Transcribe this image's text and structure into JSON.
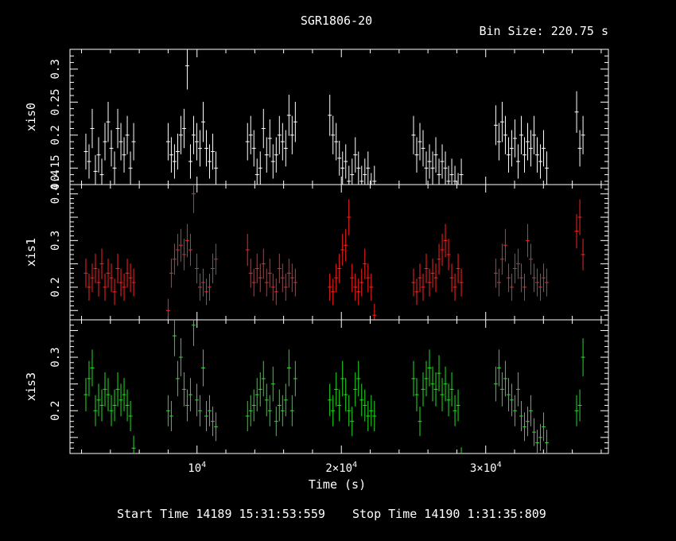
{
  "header": {
    "title": "SGR1806-20",
    "bin_size": "Bin Size: 220.75 s"
  },
  "footer": {
    "start_time": "Start Time 14189 15:31:53:559",
    "stop_time": "Stop Time 14190  1:31:35:809"
  },
  "colors": {
    "xis0": "#ffffff",
    "xis1": "#ff2020",
    "xis3": "#20e020",
    "frame": "#ffffff"
  },
  "chart_data": {
    "type": "scatter",
    "xlabel": "Time (s)",
    "xlim": [
      1200,
      38500
    ],
    "x_ticks": [
      {
        "value": 10000,
        "label": "10",
        "exp": "4"
      },
      {
        "value": 20000,
        "label": "2×10",
        "exp": "4"
      },
      {
        "value": 30000,
        "label": "3×10",
        "exp": "4"
      }
    ],
    "bin_size": 220.75,
    "segment_starts": [
      2300,
      8000,
      13500,
      19200,
      25000,
      30700,
      36300
    ],
    "panels": [
      {
        "name": "xis0",
        "ylabel": "xis0",
        "ylim": [
          0.125,
          0.33
        ],
        "y_ticks": [
          {
            "value": 0.15,
            "label": "0.15"
          },
          {
            "value": 0.2,
            "label": "0.2"
          },
          {
            "value": 0.25,
            "label": "0.25"
          },
          {
            "value": 0.3,
            "label": "0.3"
          }
        ],
        "bottom_label": "0.4",
        "color": "#ffffff",
        "segments": [
          [
            0.175,
            0.16,
            0.21,
            0.145,
            0.17,
            0.14,
            0.19,
            0.22,
            0.18,
            0.15,
            0.21,
            0.19,
            0.17,
            0.2,
            0.15,
            0.19
          ],
          [
            0.19,
            0.17,
            0.16,
            0.175,
            0.2,
            0.21,
            0.305,
            0.16,
            0.2,
            0.19,
            0.18,
            0.22,
            0.18,
            0.16,
            0.175,
            0.15
          ],
          [
            0.19,
            0.2,
            0.18,
            0.14,
            0.15,
            0.21,
            0.17,
            0.195,
            0.16,
            0.17,
            0.2,
            0.19,
            0.18,
            0.23,
            0.2,
            0.22
          ],
          [
            0.23,
            0.2,
            0.19,
            0.165,
            0.15,
            0.16,
            0.13,
            0.14,
            0.17,
            0.15,
            0.13,
            0.14,
            0.15,
            0.12,
            0.13
          ],
          [
            0.2,
            0.17,
            0.19,
            0.18,
            0.15,
            0.16,
            0.15,
            0.17,
            0.14,
            0.16,
            0.15,
            0.13,
            0.14,
            0.13,
            0.12,
            0.14
          ],
          [
            0.215,
            0.19,
            0.22,
            0.2,
            0.17,
            0.18,
            0.195,
            0.16,
            0.2,
            0.17,
            0.19,
            0.18,
            0.2,
            0.17,
            0.16,
            0.18,
            0.15
          ],
          [
            0.235,
            0.18,
            0.2
          ]
        ]
      },
      {
        "name": "xis1",
        "ylabel": "xis1",
        "ylim": [
          0.13,
          0.42
        ],
        "y_ticks": [
          {
            "value": 0.2,
            "label": "0.2"
          },
          {
            "value": 0.3,
            "label": "0.3"
          },
          {
            "value": 0.4,
            "label": "0.4"
          }
        ],
        "color": "#ff2020",
        "segments": [
          [
            0.23,
            0.2,
            0.22,
            0.24,
            0.21,
            0.25,
            0.2,
            0.23,
            0.22,
            0.19,
            0.24,
            0.21,
            0.2,
            0.23,
            0.22,
            0.21
          ],
          [
            0.15,
            0.23,
            0.26,
            0.28,
            0.29,
            0.27,
            0.3,
            0.28,
            0.4,
            0.24,
            0.2,
            0.21,
            0.19,
            0.2,
            0.24,
            0.26
          ],
          [
            0.28,
            0.23,
            0.21,
            0.24,
            0.22,
            0.25,
            0.21,
            0.23,
            0.2,
            0.19,
            0.24,
            0.22,
            0.2,
            0.23,
            0.22,
            0.21
          ],
          [
            0.2,
            0.19,
            0.22,
            0.24,
            0.28,
            0.29,
            0.35,
            0.22,
            0.2,
            0.19,
            0.21,
            0.25,
            0.22,
            0.2,
            0.14
          ],
          [
            0.21,
            0.19,
            0.22,
            0.2,
            0.24,
            0.21,
            0.23,
            0.22,
            0.26,
            0.28,
            0.3,
            0.27,
            0.22,
            0.2,
            0.24,
            0.21
          ],
          [
            0.23,
            0.21,
            0.26,
            0.29,
            0.22,
            0.2,
            0.24,
            0.25,
            0.22,
            0.2,
            0.3,
            0.26,
            0.22,
            0.21,
            0.2,
            0.22,
            0.21
          ],
          [
            0.32,
            0.35,
            0.27
          ]
        ]
      },
      {
        "name": "xis3",
        "ylabel": "xis3",
        "ylim": [
          0.12,
          0.37
        ],
        "y_ticks": [
          {
            "value": 0.2,
            "label": "0.2"
          },
          {
            "value": 0.3,
            "label": "0.3"
          }
        ],
        "color": "#20e020",
        "segments": [
          [
            0.23,
            0.26,
            0.28,
            0.2,
            0.22,
            0.21,
            0.24,
            0.23,
            0.2,
            0.21,
            0.24,
            0.22,
            0.23,
            0.21,
            0.19,
            0.13
          ],
          [
            0.2,
            0.19,
            0.34,
            0.26,
            0.3,
            0.24,
            0.21,
            0.23,
            0.36,
            0.22,
            0.2,
            0.28,
            0.19,
            0.2,
            0.18,
            0.17
          ],
          [
            0.19,
            0.2,
            0.21,
            0.23,
            0.24,
            0.26,
            0.22,
            0.2,
            0.25,
            0.18,
            0.21,
            0.2,
            0.22,
            0.28,
            0.2,
            0.26
          ],
          [
            0.22,
            0.2,
            0.24,
            0.21,
            0.26,
            0.23,
            0.2,
            0.18,
            0.24,
            0.26,
            0.22,
            0.21,
            0.19,
            0.2,
            0.19
          ],
          [
            0.26,
            0.23,
            0.18,
            0.24,
            0.26,
            0.28,
            0.25,
            0.24,
            0.27,
            0.23,
            0.25,
            0.22,
            0.24,
            0.2,
            0.21,
            0.11
          ],
          [
            0.25,
            0.28,
            0.24,
            0.26,
            0.23,
            0.22,
            0.2,
            0.24,
            0.19,
            0.17,
            0.18,
            0.2,
            0.16,
            0.14,
            0.15,
            0.17,
            0.14
          ],
          [
            0.2,
            0.21,
            0.3
          ]
        ]
      }
    ]
  }
}
